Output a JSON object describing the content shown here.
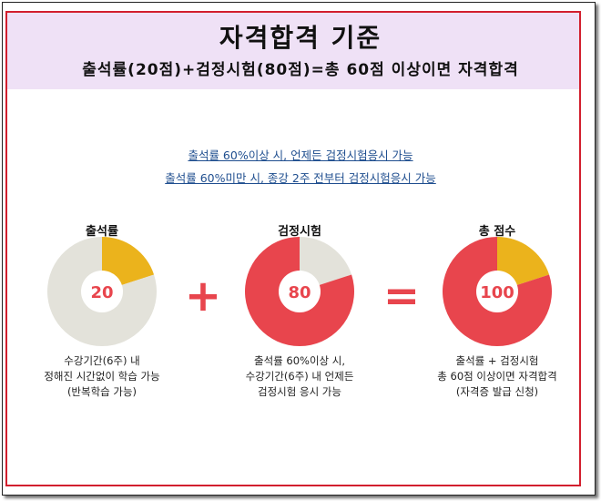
{
  "header": {
    "title": "자격합격 기준",
    "subtitle": "출석률(20점)+검정시험(80점)=총 60점 이상이면 자격합격"
  },
  "notes": [
    "출석률 60%이상 시, 언제든 검정시험응시 가능",
    "출석률 60%미만 시, 종강 2주 전부터 검정시험응시 가능"
  ],
  "operators": {
    "plus": "+",
    "equals": "="
  },
  "colors": {
    "red": "#e8454d",
    "yellow": "#ebb31c",
    "gray": "#e3e2da",
    "frame": "#d21f2e",
    "header_bg": "#efe1f6"
  },
  "chart_data": [
    {
      "type": "pie",
      "title": "출석률",
      "center_label": "20",
      "slices": [
        {
          "color": "yellow",
          "fraction": 0.2
        },
        {
          "color": "gray",
          "fraction": 0.8
        }
      ],
      "caption": [
        "수강기간(6주) 내",
        "정해진 시간없이 학습 가능",
        "(반복학습 가능)"
      ]
    },
    {
      "type": "pie",
      "title": "검정시험",
      "center_label": "80",
      "slices": [
        {
          "color": "gray",
          "fraction": 0.2
        },
        {
          "color": "red",
          "fraction": 0.8
        }
      ],
      "caption": [
        "출석률 60%이상 시,",
        "수강기간(6주) 내 언제든",
        "검정시험 응시 가능"
      ]
    },
    {
      "type": "pie",
      "title": "총 점수",
      "center_label": "100",
      "slices": [
        {
          "color": "yellow",
          "fraction": 0.2
        },
        {
          "color": "red",
          "fraction": 0.8
        }
      ],
      "caption": [
        "출석률 + 검정시험",
        "총 60점 이상이면 자격합격",
        "(자격증 발급 신청)"
      ]
    }
  ]
}
